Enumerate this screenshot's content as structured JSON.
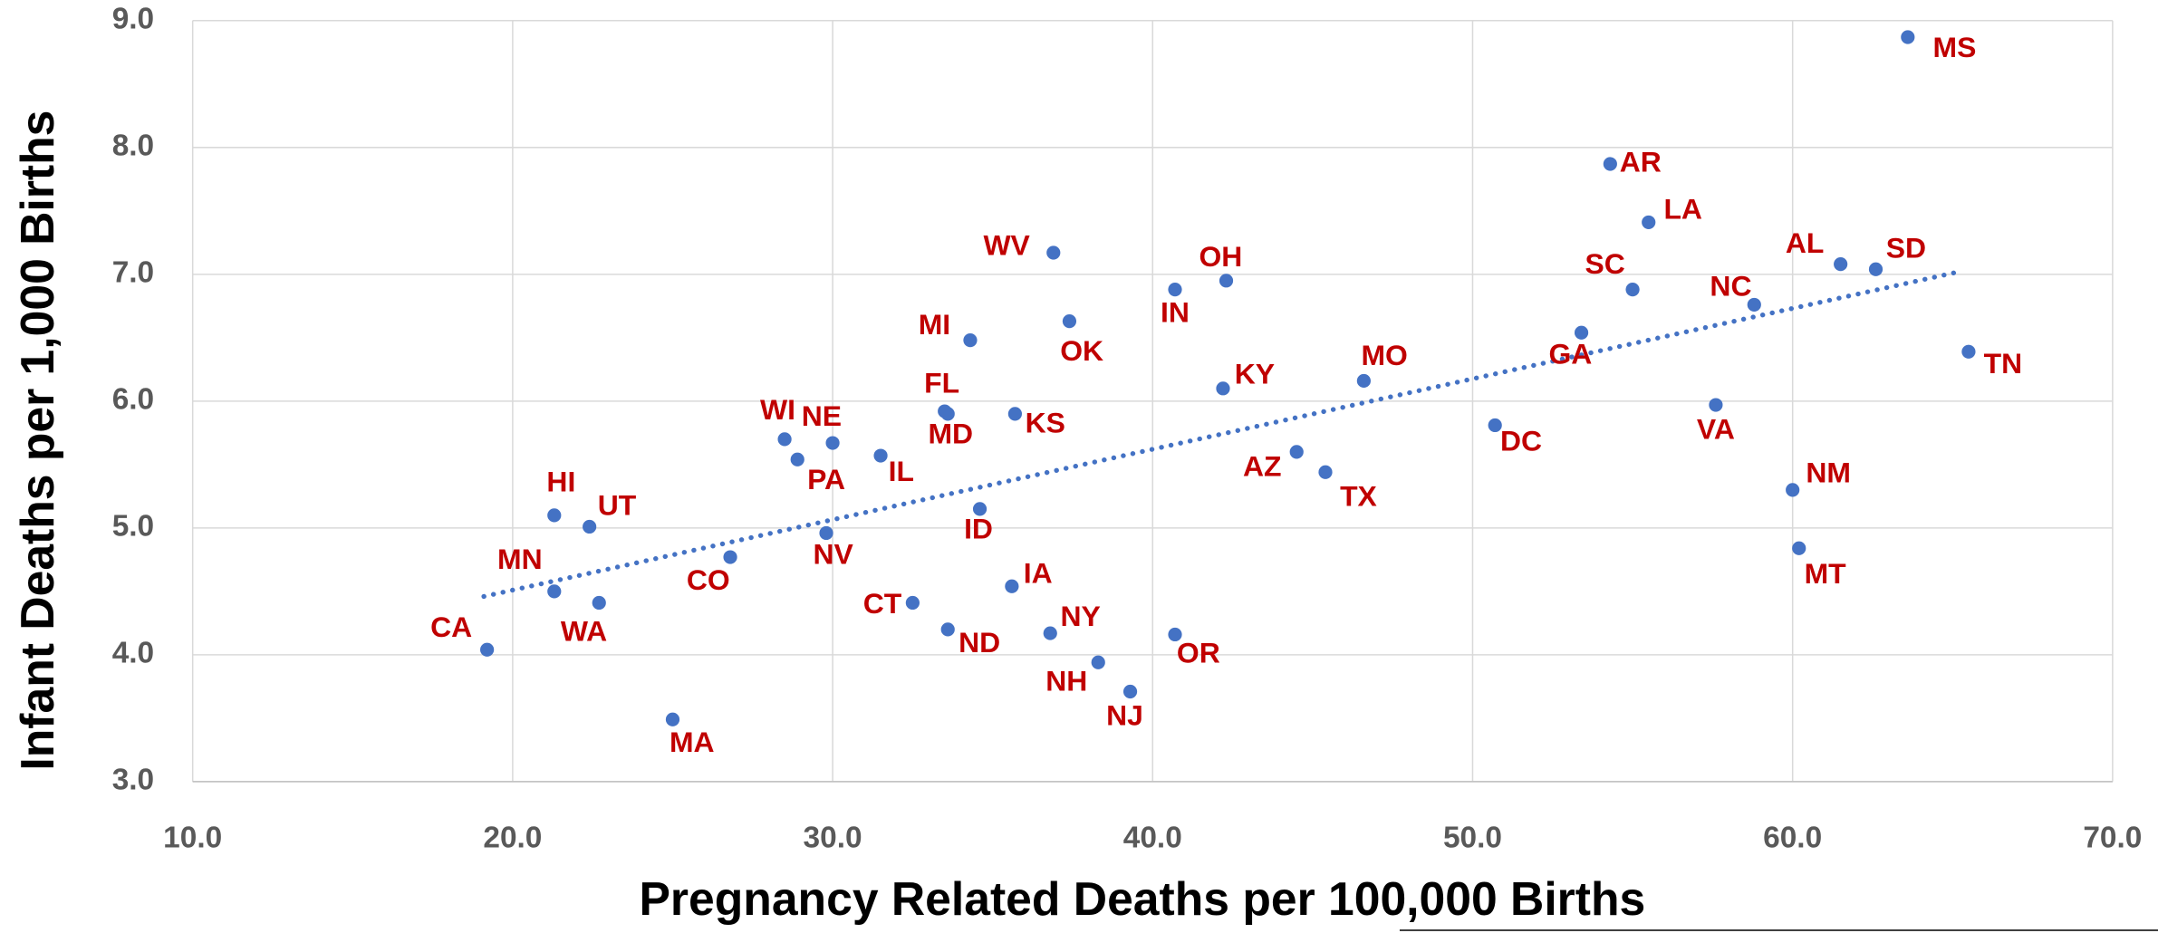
{
  "chart_data": {
    "type": "scatter",
    "x_label": "Pregnancy Related Deaths per 100,000 Births",
    "y_label": "Infant Deaths per 1,000 Births",
    "xlim": [
      10,
      70
    ],
    "ylim": [
      3,
      9
    ],
    "xticks": [
      {
        "value": 10,
        "label": "10.0"
      },
      {
        "value": 20,
        "label": "20.0"
      },
      {
        "value": 30,
        "label": "30.0"
      },
      {
        "value": 40,
        "label": "40.0"
      },
      {
        "value": 50,
        "label": "50.0"
      },
      {
        "value": 60,
        "label": "60.0"
      },
      {
        "value": 70,
        "label": "70.0"
      }
    ],
    "yticks": [
      {
        "value": 3,
        "label": "3.0"
      },
      {
        "value": 4,
        "label": "4.0"
      },
      {
        "value": 5,
        "label": "5.0"
      },
      {
        "value": 6,
        "label": "6.0"
      },
      {
        "value": 7,
        "label": "7.0"
      },
      {
        "value": 8,
        "label": "8.0"
      },
      {
        "value": 9,
        "label": "9.0"
      }
    ],
    "grid": true,
    "color": "#4472c4",
    "label_color": "#c00000",
    "labels": [
      "MS",
      "AR",
      "LA",
      "SC",
      "AL",
      "SD",
      "NC",
      "GA",
      "TN",
      "VA",
      "NM",
      "MT",
      "DC",
      "MO",
      "KY",
      "AZ",
      "TX",
      "OH",
      "IN",
      "WV",
      "OK",
      "MI",
      "FL",
      "MD",
      "KS",
      "WI",
      "NE",
      "PA",
      "IL",
      "NV",
      "ID",
      "HI",
      "UT",
      "MN",
      "WA",
      "CO",
      "CA",
      "MA",
      "CT",
      "IA",
      "ND",
      "NY",
      "NH",
      "NJ",
      "OR"
    ],
    "x": [
      63.6,
      54.3,
      55.5,
      55.0,
      61.5,
      62.6,
      58.8,
      53.4,
      65.5,
      57.6,
      60.0,
      60.2,
      50.7,
      46.6,
      42.2,
      44.5,
      45.4,
      42.3,
      40.7,
      36.9,
      37.4,
      34.3,
      33.5,
      33.6,
      35.7,
      28.5,
      30.0,
      28.9,
      31.5,
      29.8,
      34.6,
      21.3,
      22.4,
      21.3,
      22.7,
      26.8,
      19.2,
      25.0,
      32.5,
      35.6,
      33.6,
      36.8,
      38.3,
      39.3,
      40.7
    ],
    "y": [
      8.87,
      7.87,
      7.41,
      6.88,
      7.08,
      7.04,
      6.76,
      6.54,
      6.39,
      5.97,
      5.3,
      4.84,
      5.81,
      6.16,
      6.1,
      5.6,
      5.44,
      6.95,
      6.88,
      7.17,
      6.63,
      6.48,
      5.92,
      5.9,
      5.9,
      5.7,
      5.67,
      5.54,
      5.57,
      4.96,
      5.15,
      5.1,
      5.01,
      4.5,
      4.41,
      4.77,
      4.04,
      3.49,
      4.41,
      4.54,
      4.2,
      4.17,
      3.94,
      3.71,
      4.16
    ],
    "trendline": {
      "color": "#4472c4",
      "x": [
        19.1,
        65.2
      ],
      "y": [
        4.46,
        7.02
      ]
    }
  }
}
